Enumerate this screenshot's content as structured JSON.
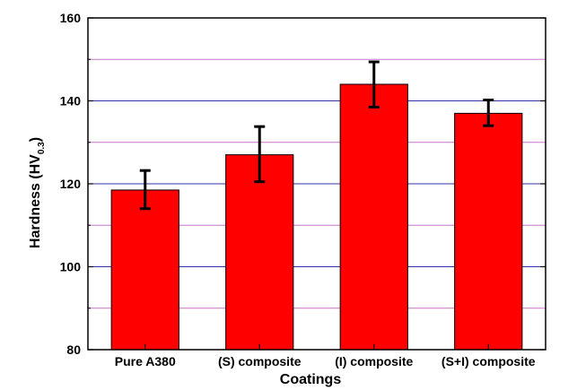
{
  "chart_data": {
    "type": "bar",
    "categories": [
      "Pure A380",
      "(S) composite",
      "(I) composite",
      "(S+I) composite"
    ],
    "values": [
      118.5,
      127.0,
      144.0,
      137.0
    ],
    "error_low": [
      114.0,
      120.5,
      138.5,
      134.0
    ],
    "error_high": [
      123.2,
      133.8,
      149.4,
      140.2
    ],
    "xlabel": "Coatings",
    "ylabel_main": "Hardness (HV",
    "ylabel_sub": "0.3",
    "ylabel_close": ")",
    "ylim": [
      80,
      160
    ],
    "yticks": [
      "80",
      "100",
      "120",
      "140",
      "160"
    ],
    "grid": true,
    "colors": {
      "bar": "#ff0000",
      "bar_edge": "#000000",
      "error_bar": "#000000",
      "grid_major": "#3333aa",
      "grid_minor": "#cc77cc"
    }
  }
}
